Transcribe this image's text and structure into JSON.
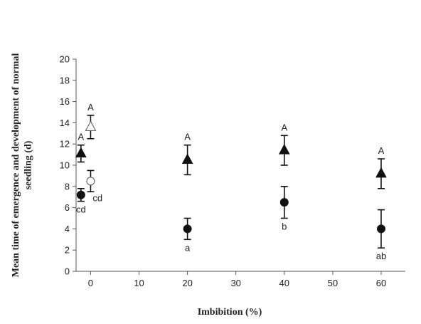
{
  "chart_data": {
    "type": "scatter",
    "xlabel": "Imbibition (%)",
    "ylabel": "Mean time of emergence and development of normal seedling (d)",
    "xlim": [
      -3,
      65
    ],
    "ylim": [
      0,
      20
    ],
    "xticks": [
      0,
      10,
      20,
      30,
      40,
      50,
      60
    ],
    "yticks": [
      0,
      2,
      4,
      6,
      8,
      10,
      12,
      14,
      16,
      18,
      20
    ],
    "grid": false,
    "series": [
      {
        "marker": "filled-triangle",
        "points": [
          {
            "x": -2,
            "y": 11.1,
            "err": 0.8,
            "label": "A",
            "label_pos": "above"
          },
          {
            "x": 20,
            "y": 10.5,
            "err": 1.4,
            "label": "A",
            "label_pos": "above"
          },
          {
            "x": 40,
            "y": 11.4,
            "err": 1.4,
            "label": "A",
            "label_pos": "above"
          },
          {
            "x": 60,
            "y": 9.2,
            "err": 1.4,
            "label": "A",
            "label_pos": "above"
          }
        ]
      },
      {
        "marker": "open-triangle",
        "points": [
          {
            "x": 0,
            "y": 13.6,
            "err": 1.1,
            "label": "A",
            "label_pos": "above"
          }
        ]
      },
      {
        "marker": "filled-circle",
        "points": [
          {
            "x": -2,
            "y": 7.2,
            "err": 0.6,
            "label": "cd",
            "label_pos": "below"
          },
          {
            "x": 20,
            "y": 4.0,
            "err": 1.0,
            "label": "a",
            "label_pos": "below"
          },
          {
            "x": 40,
            "y": 6.5,
            "err": 1.5,
            "label": "b",
            "label_pos": "below"
          },
          {
            "x": 60,
            "y": 4.0,
            "err": 1.8,
            "label": "ab",
            "label_pos": "below"
          }
        ]
      },
      {
        "marker": "open-circle",
        "points": [
          {
            "x": 0,
            "y": 8.5,
            "err": 1.0,
            "label": "cd",
            "label_pos": "right-below"
          }
        ]
      }
    ]
  }
}
